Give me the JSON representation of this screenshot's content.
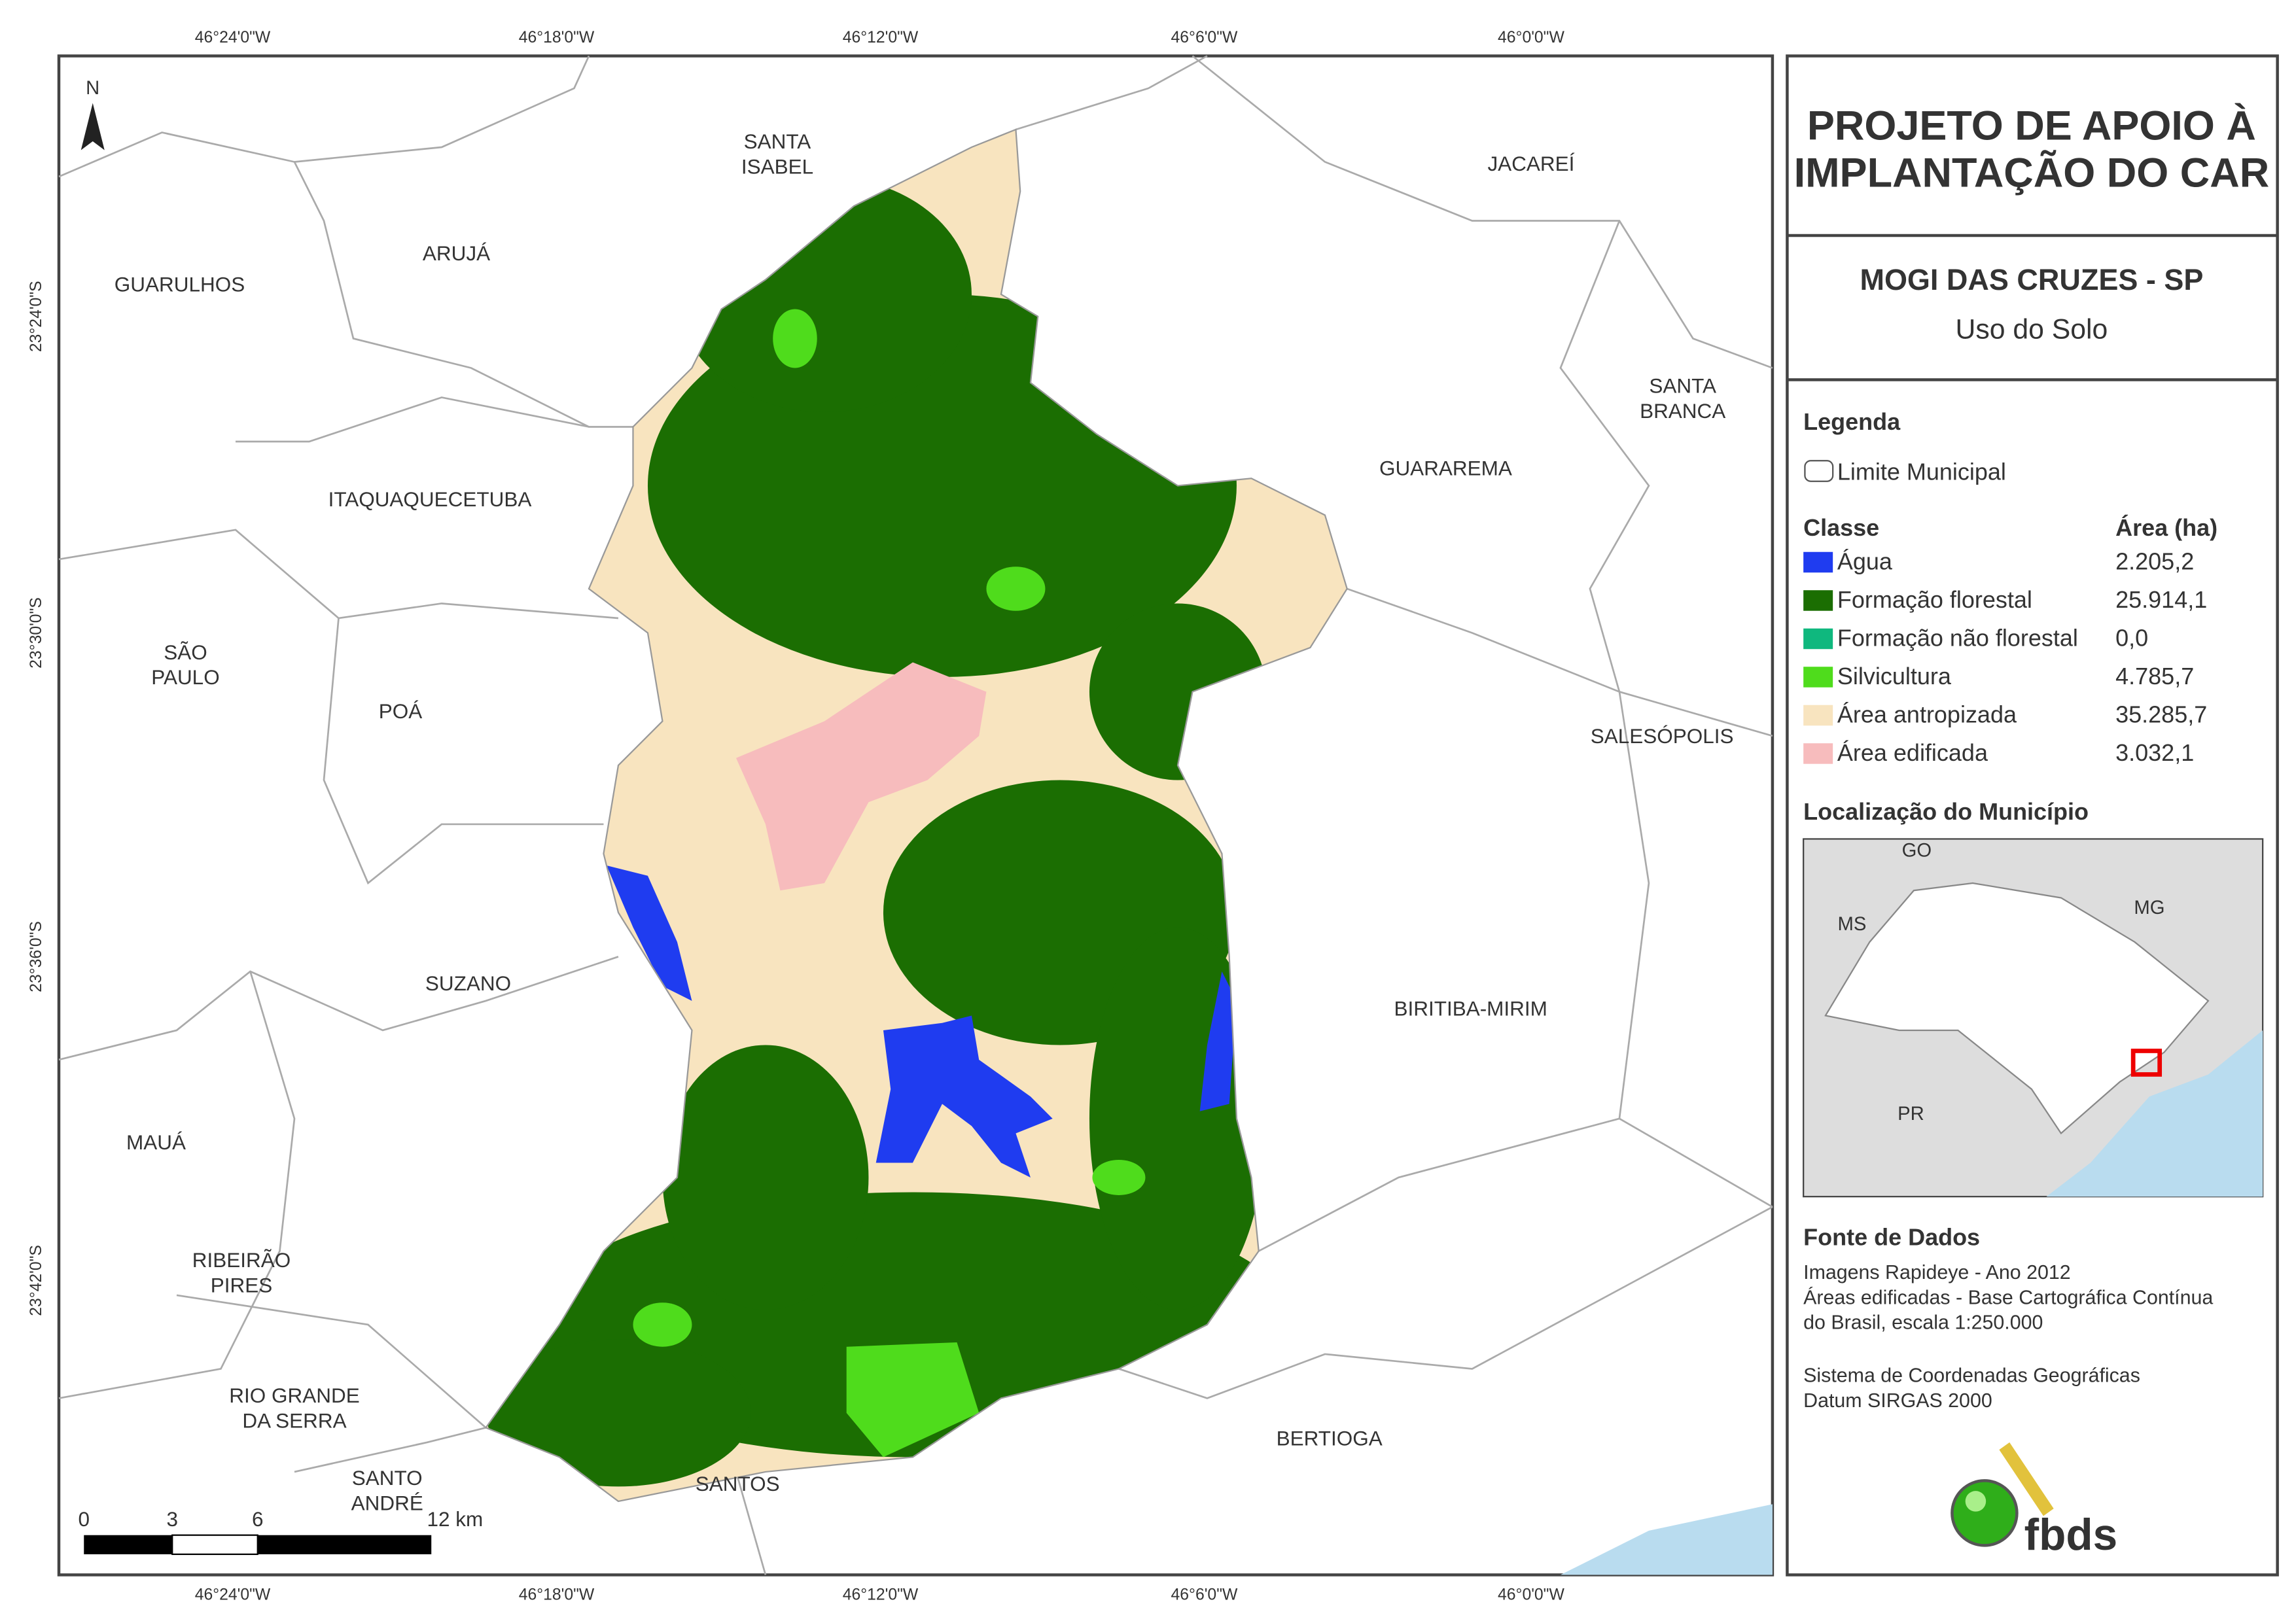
{
  "header": {
    "title": [
      "PROJETO DE APOIO À",
      "IMPLANTAÇÃO DO CAR"
    ],
    "municipality": "MOGI DAS CRUZES - SP",
    "theme": "Uso do Solo"
  },
  "map": {
    "coords_x": [
      "46°24'0\"W",
      "46°18'0\"W",
      "46°12'0\"W",
      "46°6'0\"W",
      "46°0'0\"W"
    ],
    "coords_y": [
      "23°24'0\"S",
      "23°30'0\"S",
      "23°36'0\"S",
      "23°42'0\"S"
    ],
    "north": "N",
    "scale": [
      "0",
      "3",
      "6",
      "12 km"
    ],
    "places": [
      [
        "SANTA",
        "ISABEL"
      ],
      [
        "ARUJÁ"
      ],
      [
        "GUARULHOS"
      ],
      [
        "JACAREÍ"
      ],
      [
        "SANTA",
        "BRANCA"
      ],
      [
        "ITAQUAQUECETUBA"
      ],
      [
        "GUARAREMA"
      ],
      [
        "SÃO",
        "PAULO"
      ],
      [
        "POÁ"
      ],
      [
        "SALESÓPOLIS"
      ],
      [
        "SUZANO"
      ],
      [
        "BIRITIBA-MIRIM"
      ],
      [
        "MAUÁ"
      ],
      [
        "RIBEIRÃO",
        "PIRES"
      ],
      [
        "RIO GRANDE",
        "DA SERRA"
      ],
      [
        "SANTO",
        "ANDRÉ"
      ],
      [
        "SANTOS"
      ],
      [
        "BERTIOGA"
      ]
    ]
  },
  "legend": {
    "title": "Legenda",
    "boundary": "Limite Municipal",
    "class_header": "Classe",
    "area_header": "Área (ha)",
    "rows": [
      {
        "label": "Água",
        "area": "2.205,2",
        "color": "#1f3cf0"
      },
      {
        "label": "Formação florestal",
        "area": "25.914,1",
        "color": "#1b6e02"
      },
      {
        "label": "Formação não florestal",
        "area": "0,0",
        "color": "#0fb87e"
      },
      {
        "label": "Silvicultura",
        "area": "4.785,7",
        "color": "#4fdc1c"
      },
      {
        "label": "Área antropizada",
        "area": "35.285,7",
        "color": "#f8e4bf"
      },
      {
        "label": "Área edificada",
        "area": "3.032,1",
        "color": "#f7bcbd"
      }
    ]
  },
  "location": {
    "title": "Localização do Município",
    "labels": [
      "GO",
      "MS",
      "MG",
      "PR"
    ]
  },
  "sources": {
    "title": "Fonte de Dados",
    "lines": [
      "Imagens Rapideye - Ano 2012",
      "Áreas edificadas - Base Cartográfica Contínua",
      "do Brasil, escala 1:250.000",
      "Sistema de Coordenadas Geográficas",
      "Datum SIRGAS 2000"
    ]
  },
  "logo": "fbds"
}
